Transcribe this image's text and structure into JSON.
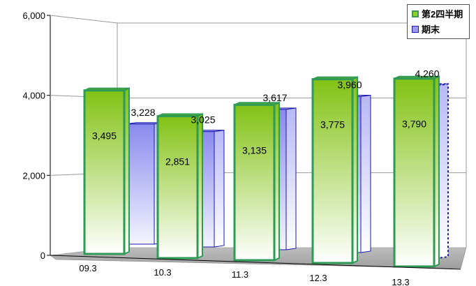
{
  "chart_data": {
    "type": "bar",
    "style": "3d-clustered",
    "categories": [
      "09.3",
      "10.3",
      "11.3",
      "12.3",
      "13.3"
    ],
    "series": [
      {
        "name": "第2四半期",
        "values": [
          3495,
          2851,
          3135,
          3775,
          3790
        ],
        "labels": [
          "3,495",
          "2,851",
          "3,135",
          "3,775",
          "3,790"
        ],
        "color": "#5cb85c",
        "fill": "#88c418"
      },
      {
        "name": "期末",
        "values": [
          3228,
          3025,
          3617,
          3960,
          4260
        ],
        "labels": [
          "3,228",
          "3,025",
          "3,617",
          "3,960",
          "4,260"
        ],
        "color": "#1a1ab0",
        "fill": "#8f8fef",
        "dashed_last": true
      }
    ],
    "y_ticks": [
      "0",
      "2,000",
      "4,000",
      "6,000"
    ],
    "ylim": [
      0,
      6000
    ],
    "grid": true,
    "legend_position": "top-right"
  }
}
